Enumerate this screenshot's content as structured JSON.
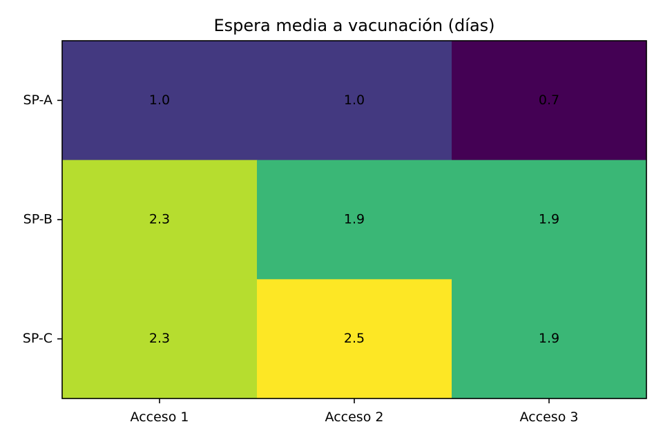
{
  "chart_data": {
    "type": "heatmap",
    "title": "Espera media a vacunación (días)",
    "xlabel": "",
    "ylabel": "",
    "x_categories": [
      "Acceso 1",
      "Acceso 2",
      "Acceso 3"
    ],
    "y_categories": [
      "SP-A",
      "SP-B",
      "SP-C"
    ],
    "values": [
      [
        1.0,
        1.0,
        0.7
      ],
      [
        2.3,
        1.9,
        1.9
      ],
      [
        2.3,
        2.5,
        1.9
      ]
    ],
    "value_labels": [
      [
        "1.0",
        "1.0",
        "0.7"
      ],
      [
        "2.3",
        "1.9",
        "1.9"
      ],
      [
        "2.3",
        "2.5",
        "1.9"
      ]
    ],
    "colormap": "viridis",
    "colorbar": false,
    "grid": false
  }
}
